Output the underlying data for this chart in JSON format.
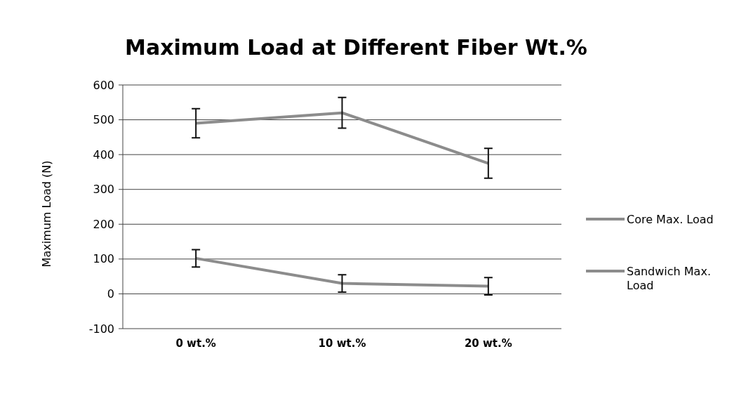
{
  "chart_data": {
    "type": "line",
    "title": "Maximum Load at Different Fiber Wt.%",
    "ylabel": "Maximum Load (N)",
    "categories": [
      "0 wt.%",
      "10 wt.%",
      "20 wt.%"
    ],
    "series": [
      {
        "name": "Core Max. Load",
        "color": "#8c8c8c",
        "values": [
          490,
          520,
          375
        ],
        "errors": [
          42,
          44,
          43
        ]
      },
      {
        "name": "Sandwich Max. Load",
        "color": "#8c8c8c",
        "values": [
          102,
          30,
          22
        ],
        "errors": [
          25,
          25,
          25
        ]
      }
    ],
    "ylim": [
      -100,
      600
    ],
    "yticks": [
      -100,
      0,
      100,
      200,
      300,
      400,
      500,
      600
    ],
    "grid": "y",
    "legend": "right",
    "marker": "none",
    "line_style": "solid"
  }
}
